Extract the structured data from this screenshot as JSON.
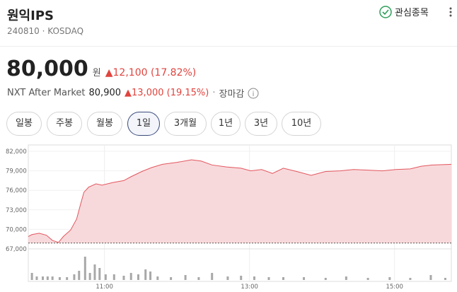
{
  "header": {
    "name": "원익IPS",
    "code": "240810",
    "market": "KOSDAQ",
    "watchlist": "관심종목"
  },
  "quote": {
    "price": "80,000",
    "unit": "원",
    "change": "▲12,100 (17.82%)",
    "nxt_label": "NXT After Market",
    "nxt_price": "80,900",
    "nxt_change": "▲13,000 (19.15%)",
    "status": "장마감"
  },
  "tabs": [
    "일봉",
    "주봉",
    "월봉",
    "1일",
    "3개월",
    "1년",
    "3년",
    "10년"
  ],
  "active_tab": 3,
  "chart_data": [
    {
      "type": "area",
      "color": "#e2575f",
      "fill": "#f8d9db",
      "base_line": 67900,
      "x": [
        597,
        600,
        606,
        612,
        617,
        622,
        626,
        632,
        637,
        640,
        643,
        647,
        653,
        658,
        667,
        676,
        682,
        691,
        699,
        708,
        720,
        732,
        740,
        749,
        761,
        773,
        781,
        790,
        799,
        808,
        819,
        831,
        843,
        855,
        866,
        878,
        890,
        901,
        913,
        922,
        931,
        947
      ],
      "values": [
        68900,
        69200,
        69400,
        69100,
        68300,
        68000,
        68900,
        69900,
        71600,
        73700,
        75700,
        76500,
        77000,
        76800,
        77200,
        77500,
        78100,
        78900,
        79500,
        80000,
        80300,
        80700,
        80500,
        79900,
        79600,
        79400,
        79000,
        79200,
        78600,
        79400,
        78900,
        78300,
        78900,
        79000,
        79200,
        79100,
        79000,
        79200,
        79300,
        79700,
        79900,
        80000
      ],
      "xlim": [
        597,
        947
      ],
      "ylim": [
        67000,
        82000
      ],
      "yticks": [
        {
          "value": 67000,
          "label": "67,000"
        },
        {
          "value": 70000,
          "label": "70,000"
        },
        {
          "value": 73000,
          "label": "73,000"
        },
        {
          "value": 76000,
          "label": "76,000"
        },
        {
          "value": 79000,
          "label": "79,000"
        },
        {
          "value": 82000,
          "label": "82,000"
        }
      ],
      "xticks": [
        {
          "value": 660,
          "label": "11:00"
        },
        {
          "value": 780,
          "label": "13:00"
        },
        {
          "value": 900,
          "label": "15:00"
        }
      ],
      "grid": true
    },
    {
      "type": "bar",
      "color": "#a8a8a8",
      "x": [
        600,
        604,
        609,
        613,
        617,
        623,
        629,
        635,
        639,
        644,
        648,
        652,
        656,
        661,
        668,
        676,
        682,
        688,
        694,
        698,
        704,
        715,
        727,
        738,
        749,
        762,
        773,
        784,
        796,
        808,
        825,
        843,
        860,
        878,
        896,
        913,
        930,
        942
      ],
      "values": [
        10,
        5,
        5,
        5,
        5,
        4,
        4,
        8,
        13,
        33,
        10,
        22,
        17,
        8,
        8,
        6,
        10,
        8,
        15,
        12,
        5,
        4,
        7,
        4,
        10,
        5,
        6,
        5,
        4,
        4,
        4,
        3,
        5,
        3,
        4,
        3,
        7,
        3
      ],
      "xlim": [
        597,
        947
      ],
      "ylim": [
        0,
        40
      ]
    }
  ]
}
